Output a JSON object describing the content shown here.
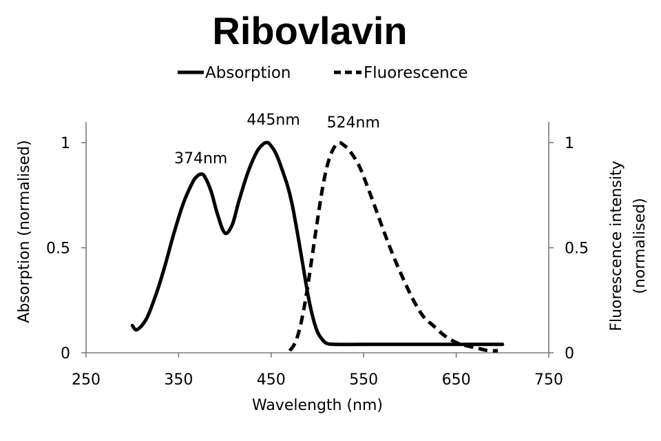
{
  "chart_data": {
    "type": "line",
    "title": "Ribovlavin",
    "xlabel": "Wavelength (nm)",
    "ylabel": "Absorption (normalised)",
    "y2label": [
      "Fluorescence intensity",
      "(normalised)"
    ],
    "xlim": [
      250,
      750
    ],
    "ylim": [
      0,
      1.1
    ],
    "y2lim": [
      0,
      1.1
    ],
    "xticks": [
      250,
      350,
      450,
      550,
      650,
      750
    ],
    "yticks": [
      0,
      0.5,
      1
    ],
    "ytick_labels": [
      "0",
      "0.5",
      "1"
    ],
    "y2ticks": [
      0,
      0.5,
      1
    ],
    "y2tick_labels": [
      "0",
      "0.5",
      "1"
    ],
    "grid": false,
    "legend_position": "top-center",
    "series": [
      {
        "name": "Absorption",
        "style": "solid",
        "axis": "left",
        "x": [
          300,
          305,
          315,
          325,
          335,
          345,
          355,
          365,
          370,
          374,
          378,
          385,
          392,
          400,
          408,
          415,
          425,
          435,
          442,
          445,
          448,
          455,
          462,
          468,
          472,
          476,
          480,
          485,
          490,
          495,
          500,
          505,
          510,
          520,
          550,
          600,
          650,
          700
        ],
        "y": [
          0.13,
          0.11,
          0.16,
          0.27,
          0.41,
          0.57,
          0.71,
          0.81,
          0.84,
          0.85,
          0.84,
          0.77,
          0.66,
          0.57,
          0.61,
          0.72,
          0.86,
          0.96,
          0.995,
          1.0,
          0.995,
          0.95,
          0.87,
          0.79,
          0.72,
          0.63,
          0.53,
          0.4,
          0.27,
          0.17,
          0.1,
          0.065,
          0.045,
          0.04,
          0.04,
          0.04,
          0.04,
          0.04
        ]
      },
      {
        "name": "Fluorescence",
        "style": "dashed",
        "axis": "right",
        "x": [
          470,
          475,
          480,
          485,
          490,
          495,
          500,
          505,
          510,
          515,
          520,
          524,
          528,
          535,
          545,
          555,
          565,
          575,
          585,
          595,
          605,
          615,
          625,
          635,
          645,
          655,
          665,
          675,
          685,
          695
        ],
        "y": [
          0.01,
          0.04,
          0.1,
          0.2,
          0.33,
          0.48,
          0.63,
          0.77,
          0.88,
          0.95,
          0.99,
          1.0,
          0.99,
          0.96,
          0.89,
          0.78,
          0.66,
          0.54,
          0.43,
          0.33,
          0.24,
          0.17,
          0.13,
          0.09,
          0.06,
          0.04,
          0.03,
          0.02,
          0.01,
          0.01
        ]
      }
    ],
    "annotations": [
      {
        "text": "374nm",
        "x": 374,
        "y": 0.85
      },
      {
        "text": "445nm",
        "x": 445,
        "y": 1.0
      },
      {
        "text": "524nm",
        "x": 524,
        "y": 1.0
      }
    ]
  }
}
